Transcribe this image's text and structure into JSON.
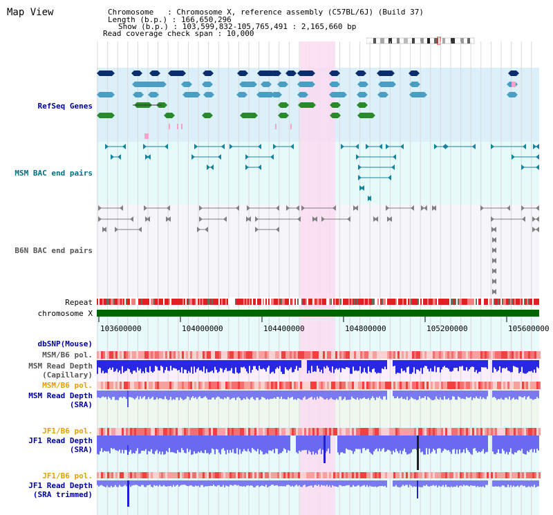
{
  "title": "Map View",
  "header": {
    "chromosome": "Chromosome   : Chromosome X, reference assembly (C57BL/6J) (Build 37)",
    "length": "Length (b.p.) : 166,650,296",
    "show": "Show (b.p.) : 103,599,832-105,765,491 : 2,165,660 bp",
    "coverage": "Read coverage check span : 10,000"
  },
  "tracks": {
    "refseq": "RefSeq Genes",
    "msm_bac": "MSM BAC end pairs",
    "b6n_bac": "B6N BAC end pairs",
    "repeat": "Repeat",
    "chromosome": "chromosome X",
    "dbsnp": "dbSNP(Mouse)",
    "msm_pol1": "MSM/B6 pol.",
    "msm_depth_cap_1": "MSM Read Depth",
    "msm_depth_cap_2": "(Capillary)",
    "msm_pol2": "MSM/B6 pol.",
    "msm_depth_sra_1": "MSM Read Depth",
    "msm_depth_sra_2": "(SRA)",
    "jf1_pol1": "JF1/B6 pol.",
    "jf1_depth_1": "JF1 Read Depth",
    "jf1_depth_2": "(SRA)",
    "jf1_pol2": "JF1/B6 pol.",
    "jf1_trim_1": "JF1 Read Depth",
    "jf1_trim_2": "(SRA trimmed)"
  },
  "axis_ticks": [
    "103600000",
    "104000000",
    "104400000",
    "104800000",
    "105200000",
    "105600000"
  ],
  "colors": {
    "refseq_bg": "#dcf0fa",
    "msm_bg": "#e6fafa",
    "b6n_bg": "#f5f5fa",
    "highlight": "#fadcf0",
    "label_blue": "#0000a0",
    "label_teal": "#006e82",
    "label_orange": "#e6a000",
    "chromosome_green": "#006400"
  }
}
